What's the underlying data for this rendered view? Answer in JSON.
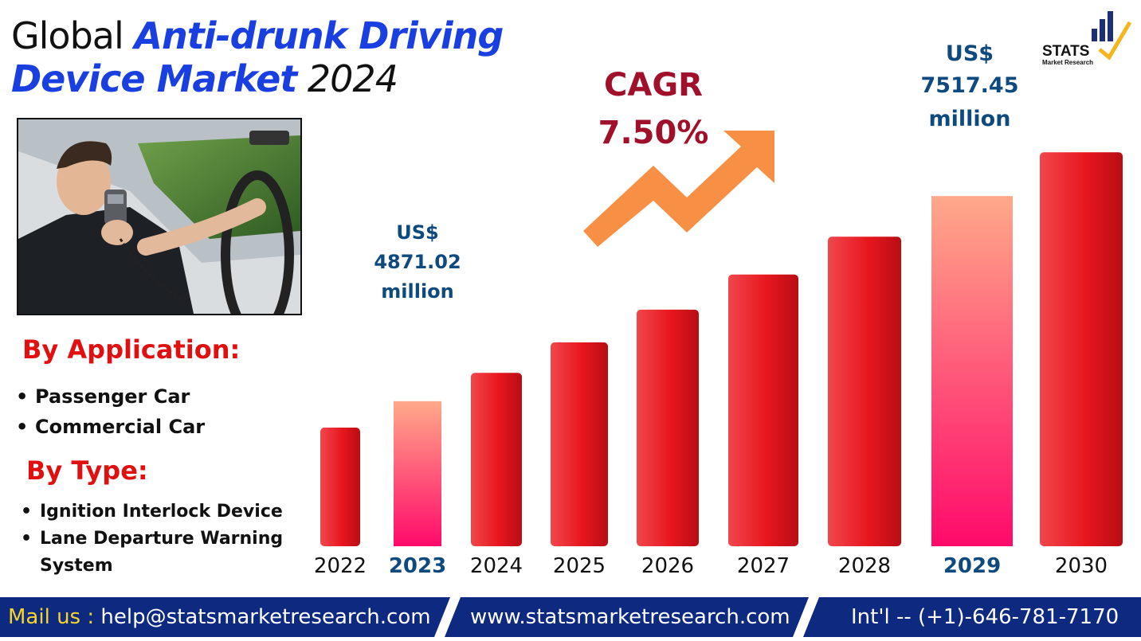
{
  "title": {
    "prefix": "Global",
    "highlight_line1": "Anti-drunk Driving",
    "highlight_line2": "Device Market",
    "year": "2024"
  },
  "logo": {
    "name": "STATS",
    "sub": "Market Research"
  },
  "photo": {
    "description": ""
  },
  "application": {
    "heading": "By Application:",
    "items": [
      "Passenger Car",
      "Commercial Car"
    ]
  },
  "type": {
    "heading": "By Type:",
    "items": [
      "Ignition Interlock Device",
      "Lane Departure Warning System"
    ]
  },
  "cagr": {
    "label": "CAGR",
    "value": "7.50%"
  },
  "colors": {
    "title_blue": "#1a3fe0",
    "bar_red": "#e8161e",
    "highlight_top": "#ffa98a",
    "highlight_bottom": "#ff0a6a",
    "value_blue": "#0f4a7e",
    "cagr_red": "#a0102a",
    "arrow_orange": "#f79044",
    "footer_navy": "#0d2a80"
  },
  "chart_data": {
    "type": "bar",
    "title": "Global Anti-drunk Driving Device Market",
    "categories": [
      "2022",
      "2023",
      "2024",
      "2025",
      "2026",
      "2027",
      "2028",
      "2029",
      "2030"
    ],
    "values": [
      4530,
      4871.02,
      5236.35,
      5629.08,
      6051.26,
      6505.1,
      6992.98,
      7517.45,
      8081.26
    ],
    "highlighted": [
      "2023",
      "2029"
    ],
    "annotations": [
      {
        "category": "2023",
        "line1": "US$",
        "line2": "4871.02",
        "line3": "million"
      },
      {
        "category": "2029",
        "line1": "US$",
        "line2": "7517.45",
        "line3": "million"
      }
    ],
    "xlabel": "",
    "ylabel": "",
    "ylim": [
      3000,
      8300
    ],
    "grid": false,
    "legend": "none"
  },
  "footer": {
    "mail_label": "Mail us :",
    "email": "help@statsmarketresearch.com",
    "website": "www.statsmarketresearch.com",
    "phone": "Int'l -- (+1)-646-781-7170"
  }
}
